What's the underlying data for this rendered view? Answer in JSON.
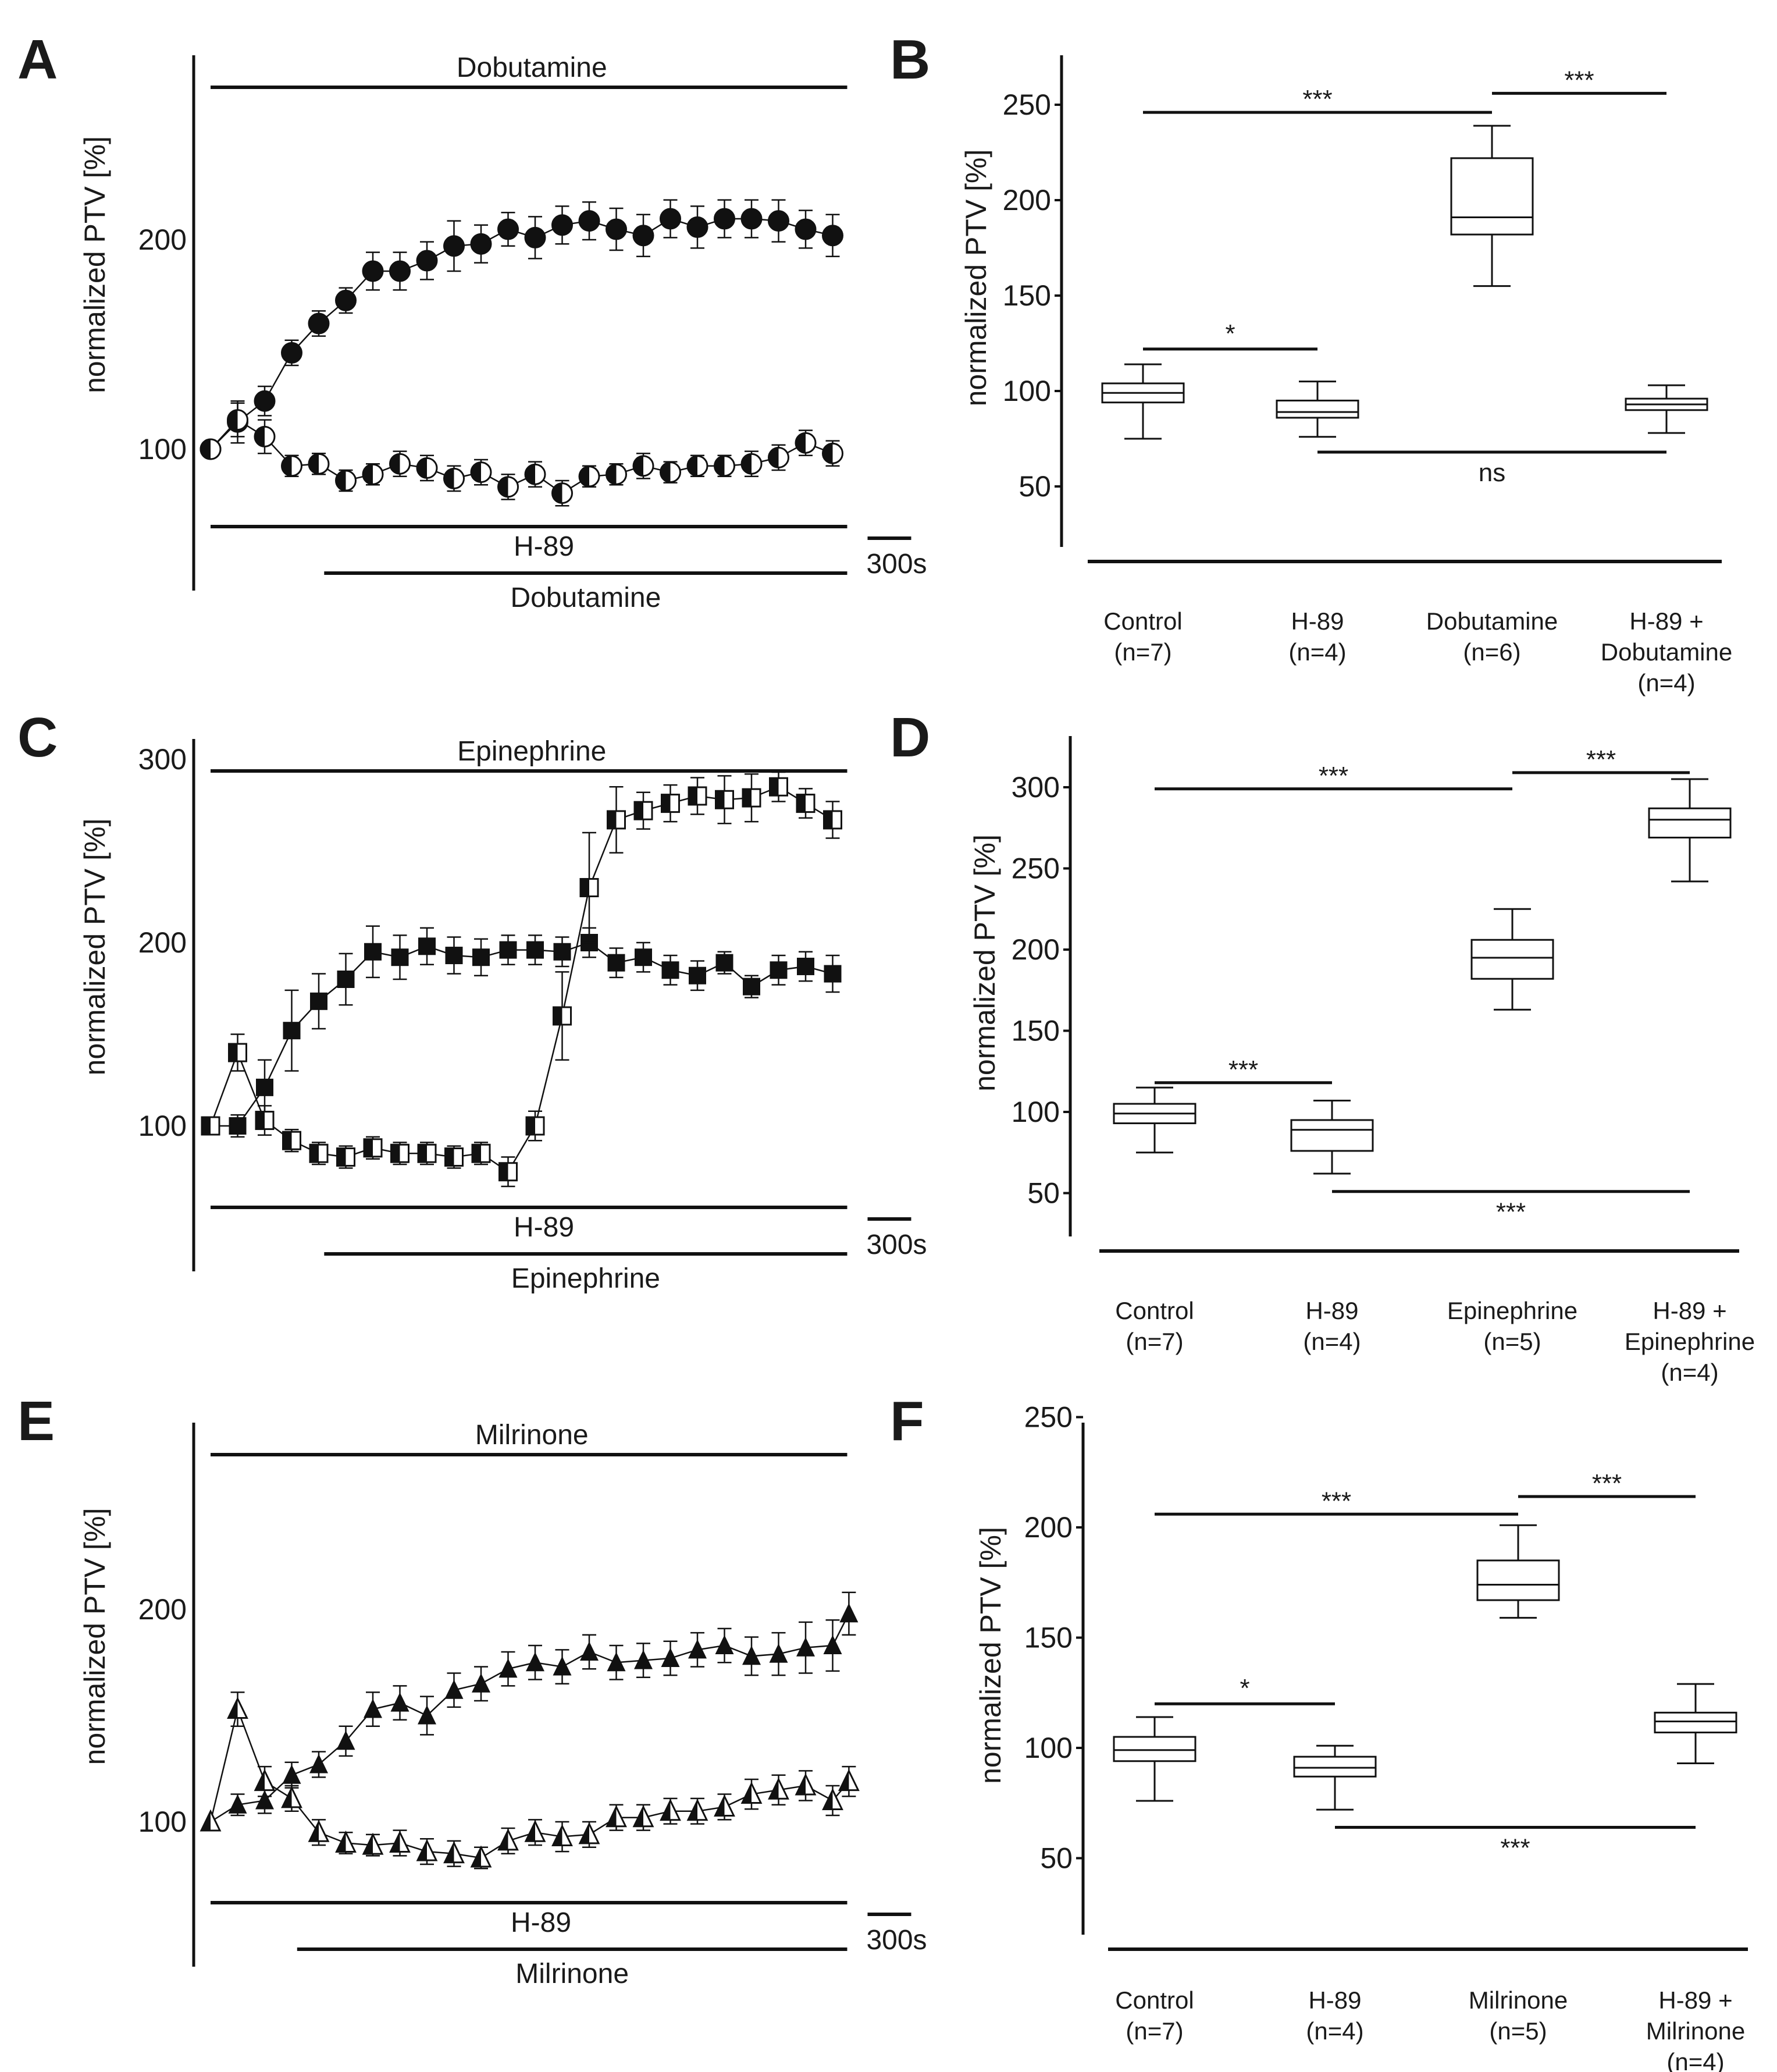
{
  "colors": {
    "ink": "#111111",
    "background": "#ffffff"
  },
  "chart_data": [
    {
      "panel": "A",
      "type": "line",
      "ylabel": "normalized PTV [%]",
      "ylim": [
        40,
        280
      ],
      "yticks": [
        100,
        200
      ],
      "x_unit": "time bin",
      "scale_bar": "300s",
      "treatment_bars": {
        "top": "Dobutamine",
        "bottom_upper": "H-89",
        "bottom_lower": "Dobutamine"
      },
      "series": [
        {
          "marker": "circle-filled",
          "x": [
            0,
            1,
            2,
            3,
            4,
            5,
            6,
            7,
            8,
            9,
            10,
            11,
            12,
            13,
            14,
            15,
            16,
            17,
            18,
            19,
            20,
            21,
            22,
            23
          ],
          "values": [
            100,
            113,
            123,
            146,
            160,
            171,
            185,
            185,
            190,
            197,
            198,
            205,
            201,
            207,
            209,
            205,
            202,
            210,
            206,
            210,
            210,
            209,
            205,
            202
          ],
          "err": [
            0,
            10,
            7,
            6,
            6,
            6,
            9,
            9,
            9,
            12,
            9,
            8,
            10,
            9,
            9,
            10,
            10,
            9,
            10,
            9,
            9,
            10,
            9,
            10
          ]
        },
        {
          "marker": "circle-half",
          "x": [
            0,
            1,
            2,
            3,
            4,
            5,
            6,
            7,
            8,
            9,
            10,
            11,
            12,
            13,
            14,
            15,
            16,
            17,
            18,
            19,
            20,
            21,
            22,
            23
          ],
          "values": [
            100,
            114,
            106,
            92,
            93,
            85,
            88,
            93,
            91,
            86,
            89,
            82,
            88,
            79,
            87,
            88,
            92,
            89,
            92,
            92,
            93,
            96,
            103,
            98
          ],
          "err": [
            0,
            8,
            8,
            5,
            5,
            5,
            5,
            6,
            6,
            6,
            6,
            6,
            6,
            6,
            5,
            5,
            6,
            5,
            5,
            5,
            6,
            6,
            6,
            6
          ]
        }
      ]
    },
    {
      "panel": "B",
      "type": "box",
      "ylabel": "normalized PTV [%]",
      "ylim": [
        25,
        270
      ],
      "yticks": [
        50,
        100,
        150,
        200,
        250
      ],
      "categories": [
        "Control",
        "H-89",
        "Dobutamine",
        "H-89 +"
      ],
      "categories_line2": [
        "(n=7)",
        "(n=4)",
        "(n=6)",
        "Dobutamine"
      ],
      "categories_line3": [
        "",
        "",
        "",
        "(n=4)"
      ],
      "boxes": [
        {
          "min": 75,
          "q1": 94,
          "median": 99,
          "q3": 104,
          "max": 114
        },
        {
          "min": 76,
          "q1": 86,
          "median": 89,
          "q3": 95,
          "max": 105
        },
        {
          "min": 155,
          "q1": 182,
          "median": 191,
          "q3": 222,
          "max": 239
        },
        {
          "min": 78,
          "q1": 90,
          "median": 93,
          "q3": 96,
          "max": 103
        }
      ],
      "significance": [
        {
          "from": 0,
          "to": 1,
          "y": 122,
          "label": "*",
          "label_pos": "above"
        },
        {
          "from": 0,
          "to": 2,
          "y": 246,
          "label": "***",
          "label_pos": "above"
        },
        {
          "from": 2,
          "to": 3,
          "y": 256,
          "label": "***",
          "label_pos": "above"
        },
        {
          "from": 1,
          "to": 3,
          "y": 68,
          "label": "ns",
          "label_pos": "below"
        }
      ]
    },
    {
      "panel": "C",
      "type": "line",
      "ylabel": "normalized PTV [%]",
      "ylim": [
        35,
        310
      ],
      "yticks": [
        100,
        200,
        300
      ],
      "x_unit": "time bin",
      "scale_bar": "300s",
      "treatment_bars": {
        "top": "Epinephrine",
        "bottom_upper": "H-89",
        "bottom_lower": "Epinephrine"
      },
      "series": [
        {
          "marker": "square-filled",
          "x": [
            0,
            1,
            2,
            3,
            4,
            5,
            6,
            7,
            8,
            9,
            10,
            11,
            12,
            13,
            14,
            15,
            16,
            17,
            18,
            19,
            20,
            21,
            22,
            23
          ],
          "values": [
            100,
            100,
            121,
            152,
            168,
            180,
            195,
            192,
            198,
            193,
            192,
            196,
            196,
            195,
            200,
            189,
            192,
            185,
            182,
            189,
            176,
            185,
            187,
            183
          ],
          "err": [
            0,
            6,
            15,
            22,
            15,
            14,
            14,
            12,
            10,
            10,
            10,
            8,
            8,
            8,
            8,
            8,
            8,
            8,
            8,
            6,
            6,
            8,
            8,
            10
          ]
        },
        {
          "marker": "square-half",
          "x": [
            0,
            1,
            2,
            3,
            4,
            5,
            6,
            7,
            8,
            9,
            10,
            11,
            12,
            13,
            14,
            15,
            16,
            17,
            18,
            19,
            20,
            21,
            22,
            23
          ],
          "values": [
            100,
            140,
            103,
            92,
            85,
            83,
            88,
            85,
            85,
            83,
            85,
            75,
            100,
            160,
            230,
            267,
            272,
            276,
            280,
            278,
            279,
            285,
            276,
            267
          ],
          "err": [
            0,
            10,
            8,
            6,
            6,
            6,
            6,
            6,
            6,
            6,
            6,
            8,
            8,
            24,
            30,
            18,
            10,
            10,
            10,
            13,
            13,
            8,
            8,
            10
          ]
        }
      ]
    },
    {
      "panel": "D",
      "type": "box",
      "ylabel": "normalized PTV [%]",
      "ylim": [
        30,
        330
      ],
      "yticks": [
        50,
        100,
        150,
        200,
        250,
        300
      ],
      "categories": [
        "Control",
        "H-89",
        "Epinephrine",
        "H-89 +"
      ],
      "categories_line2": [
        "(n=7)",
        "(n=4)",
        "(n=5)",
        "Epinephrine"
      ],
      "categories_line3": [
        "",
        "",
        "",
        "(n=4)"
      ],
      "boxes": [
        {
          "min": 75,
          "q1": 93,
          "median": 99,
          "q3": 105,
          "max": 115
        },
        {
          "min": 62,
          "q1": 76,
          "median": 89,
          "q3": 95,
          "max": 107
        },
        {
          "min": 163,
          "q1": 182,
          "median": 195,
          "q3": 206,
          "max": 225
        },
        {
          "min": 242,
          "q1": 269,
          "median": 280,
          "q3": 287,
          "max": 305
        }
      ],
      "significance": [
        {
          "from": 0,
          "to": 1,
          "y": 118,
          "label": "***",
          "label_pos": "above"
        },
        {
          "from": 0,
          "to": 2,
          "y": 299,
          "label": "***",
          "label_pos": "above"
        },
        {
          "from": 2,
          "to": 3,
          "y": 309,
          "label": "***",
          "label_pos": "above"
        },
        {
          "from": 1,
          "to": 3,
          "y": 51,
          "label": "***",
          "label_pos": "below"
        }
      ]
    },
    {
      "panel": "E",
      "type": "line",
      "ylabel": "normalized PTV [%]",
      "ylim": [
        40,
        280
      ],
      "yticks": [
        100,
        200
      ],
      "x_unit": "time bin",
      "scale_bar": "300s",
      "treatment_bars": {
        "top": "Milrinone",
        "bottom_upper": "H-89",
        "bottom_lower": "Milrinone"
      },
      "series": [
        {
          "marker": "triangle-filled",
          "x": [
            0,
            1,
            2,
            3,
            4,
            5,
            6,
            7,
            8,
            9,
            10,
            11,
            12,
            13,
            14,
            15,
            16,
            17,
            18,
            19,
            20,
            21,
            22,
            23
          ],
          "values": [
            100,
            108,
            110,
            122,
            127,
            138,
            153,
            156,
            150,
            162,
            165,
            172,
            175,
            173,
            180,
            175,
            176,
            177,
            181,
            183,
            178,
            179,
            182,
            183
          ],
          "err": [
            0,
            5,
            6,
            6,
            6,
            7,
            8,
            8,
            9,
            8,
            8,
            8,
            8,
            8,
            8,
            8,
            8,
            8,
            8,
            8,
            9,
            10,
            12,
            12
          ]
        },
        {
          "marker": "triangle-half",
          "x": [
            0,
            1,
            2,
            3,
            4,
            5,
            6,
            7,
            8,
            9,
            10,
            11,
            12,
            13,
            14,
            15,
            16,
            17,
            18,
            19,
            20,
            21,
            22,
            23
          ],
          "values": [
            100,
            153,
            119,
            111,
            95,
            90,
            89,
            90,
            86,
            85,
            83,
            91,
            95,
            93,
            94,
            102,
            102,
            105,
            105,
            107,
            113,
            115,
            117,
            110
          ],
          "err": [
            0,
            8,
            7,
            6,
            6,
            5,
            5,
            6,
            6,
            6,
            5,
            6,
            6,
            7,
            6,
            6,
            6,
            6,
            6,
            6,
            7,
            7,
            7,
            7
          ]
        }
      ],
      "end_point": {
        "x": 23.6,
        "value": 198,
        "err": 10
      },
      "end_point_half": {
        "x": 23.6,
        "value": 119,
        "err": 7
      }
    },
    {
      "panel": "F",
      "type": "box",
      "ylabel": "normalized PTV [%]",
      "ylim": [
        25,
        255
      ],
      "yticks": [
        50,
        100,
        150,
        200,
        250
      ],
      "categories": [
        "Control",
        "H-89",
        "Milrinone",
        "H-89 +"
      ],
      "categories_line2": [
        "(n=7)",
        "(n=4)",
        "(n=5)",
        "Milrinone"
      ],
      "categories_line3": [
        "",
        "",
        "",
        "(n=4)"
      ],
      "boxes": [
        {
          "min": 76,
          "q1": 94,
          "median": 99,
          "q3": 105,
          "max": 114
        },
        {
          "min": 72,
          "q1": 87,
          "median": 91,
          "q3": 96,
          "max": 101
        },
        {
          "min": 159,
          "q1": 167,
          "median": 174,
          "q3": 185,
          "max": 201
        },
        {
          "min": 93,
          "q1": 107,
          "median": 112,
          "q3": 116,
          "max": 129
        }
      ],
      "significance": [
        {
          "from": 0,
          "to": 1,
          "y": 120,
          "label": "*",
          "label_pos": "above"
        },
        {
          "from": 0,
          "to": 2,
          "y": 206,
          "label": "***",
          "label_pos": "above"
        },
        {
          "from": 2,
          "to": 3,
          "y": 214,
          "label": "***",
          "label_pos": "above"
        },
        {
          "from": 1,
          "to": 3,
          "y": 64,
          "label": "***",
          "label_pos": "below"
        }
      ]
    }
  ]
}
